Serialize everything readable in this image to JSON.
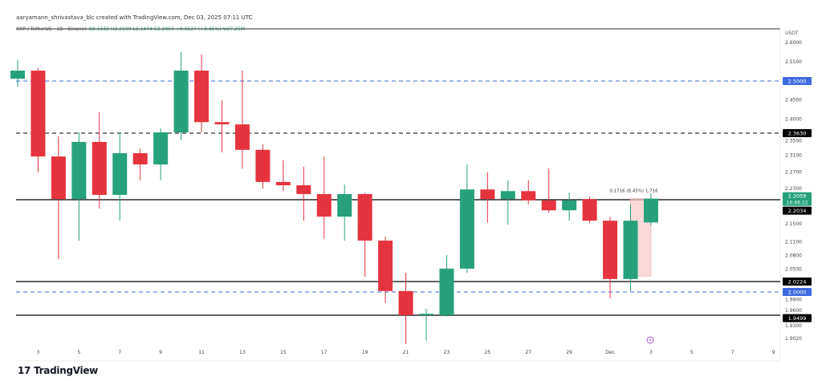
{
  "header": {
    "credit": "aaryamann_shrivastava_blc created with TradingView.com, Dec 03, 2025 07:11 UTC",
    "symbol": "XRP / TetherUS · 1D · Binance",
    "ohlc": "O2.1532 H2.2190 L2.1474 C2.2059 +0.0527 (+2.45%) Vol7.25M"
  },
  "axis": {
    "unit": "USDT"
  },
  "brand": {
    "name": "TradingView"
  },
  "colors": {
    "up": "#26a17b",
    "down": "#e5343f",
    "blue_line": "#3d6ae0",
    "measure": "#f7c9ca"
  },
  "chart_data": {
    "type": "candlestick",
    "y_ticks": [
      2.6,
      2.55,
      2.45,
      2.4,
      2.35,
      2.31,
      2.27,
      2.23,
      2.15,
      2.11,
      2.08,
      2.05,
      1.99,
      1.96,
      1.93,
      1.902
    ],
    "x_tick_labels": [
      "3",
      "5",
      "7",
      "9",
      "11",
      "13",
      "15",
      "17",
      "19",
      "21",
      "23",
      "25",
      "27",
      "29",
      "Dec",
      "3",
      "5",
      "7",
      "9"
    ],
    "x_tick_dates": [
      "2025-11-03",
      "2025-11-05",
      "2025-11-07",
      "2025-11-09",
      "2025-11-11",
      "2025-11-13",
      "2025-11-15",
      "2025-11-17",
      "2025-11-19",
      "2025-11-21",
      "2025-11-23",
      "2025-11-25",
      "2025-11-27",
      "2025-11-29",
      "2025-12-01",
      "2025-12-03",
      "2025-12-05",
      "2025-12-07",
      "2025-12-09"
    ],
    "candles": [
      {
        "d": "2025-11-02",
        "o": 2.506,
        "h": 2.554,
        "l": 2.485,
        "c": 2.527
      },
      {
        "d": "2025-11-03",
        "o": 2.527,
        "h": 2.533,
        "l": 2.269,
        "c": 2.307
      },
      {
        "d": "2025-11-04",
        "o": 2.307,
        "h": 2.355,
        "l": 2.072,
        "c": 2.205
      },
      {
        "d": "2025-11-05",
        "o": 2.205,
        "h": 2.365,
        "l": 2.113,
        "c": 2.342
      },
      {
        "d": "2025-11-06",
        "o": 2.342,
        "h": 2.418,
        "l": 2.184,
        "c": 2.215
      },
      {
        "d": "2025-11-07",
        "o": 2.215,
        "h": 2.365,
        "l": 2.157,
        "c": 2.315
      },
      {
        "d": "2025-11-08",
        "o": 2.315,
        "h": 2.326,
        "l": 2.25,
        "c": 2.288
      },
      {
        "d": "2025-11-09",
        "o": 2.288,
        "h": 2.376,
        "l": 2.25,
        "c": 2.365
      },
      {
        "d": "2025-11-10",
        "o": 2.365,
        "h": 2.575,
        "l": 2.346,
        "c": 2.527
      },
      {
        "d": "2025-11-11",
        "o": 2.527,
        "h": 2.569,
        "l": 2.365,
        "c": 2.392
      },
      {
        "d": "2025-11-12",
        "o": 2.392,
        "h": 2.449,
        "l": 2.317,
        "c": 2.386
      },
      {
        "d": "2025-11-13",
        "o": 2.386,
        "h": 2.527,
        "l": 2.278,
        "c": 2.323
      },
      {
        "d": "2025-11-14",
        "o": 2.323,
        "h": 2.336,
        "l": 2.23,
        "c": 2.246
      },
      {
        "d": "2025-11-15",
        "o": 2.246,
        "h": 2.298,
        "l": 2.224,
        "c": 2.238
      },
      {
        "d": "2025-11-16",
        "o": 2.238,
        "h": 2.282,
        "l": 2.157,
        "c": 2.217
      },
      {
        "d": "2025-11-17",
        "o": 2.217,
        "h": 2.307,
        "l": 2.116,
        "c": 2.166
      },
      {
        "d": "2025-11-18",
        "o": 2.166,
        "h": 2.24,
        "l": 2.113,
        "c": 2.217
      },
      {
        "d": "2025-11-19",
        "o": 2.217,
        "h": 2.22,
        "l": 2.033,
        "c": 2.113
      },
      {
        "d": "2025-11-20",
        "o": 2.113,
        "h": 2.122,
        "l": 1.976,
        "c": 2.002
      },
      {
        "d": "2025-11-21",
        "o": 2.002,
        "h": 2.042,
        "l": 1.889,
        "c": 1.95
      },
      {
        "d": "2025-11-22",
        "o": 1.95,
        "h": 1.964,
        "l": 1.897,
        "c": 1.953
      },
      {
        "d": "2025-11-23",
        "o": 1.95,
        "h": 2.081,
        "l": 1.947,
        "c": 2.051
      },
      {
        "d": "2025-11-24",
        "o": 2.051,
        "h": 2.288,
        "l": 2.042,
        "c": 2.228
      },
      {
        "d": "2025-11-25",
        "o": 2.228,
        "h": 2.269,
        "l": 2.152,
        "c": 2.205
      },
      {
        "d": "2025-11-26",
        "o": 2.205,
        "h": 2.25,
        "l": 2.148,
        "c": 2.224
      },
      {
        "d": "2025-11-27",
        "o": 2.224,
        "h": 2.25,
        "l": 2.193,
        "c": 2.202
      },
      {
        "d": "2025-11-28",
        "o": 2.202,
        "h": 2.278,
        "l": 2.175,
        "c": 2.18
      },
      {
        "d": "2025-11-29",
        "o": 2.18,
        "h": 2.22,
        "l": 2.157,
        "c": 2.202
      },
      {
        "d": "2025-11-30",
        "o": 2.205,
        "h": 2.211,
        "l": 2.152,
        "c": 2.157
      },
      {
        "d": "2025-12-01",
        "o": 2.157,
        "h": 2.166,
        "l": 1.986,
        "c": 2.028
      },
      {
        "d": "2025-12-02",
        "o": 2.028,
        "h": 2.193,
        "l": 2.002,
        "c": 2.157
      },
      {
        "d": "2025-12-03",
        "o": 2.1532,
        "h": 2.219,
        "l": 2.1474,
        "c": 2.2059
      }
    ],
    "horizontal_lines": [
      {
        "price": 2.5,
        "label": "2.5000",
        "style": "dashed",
        "color": "#3d6ae0"
      },
      {
        "price": 2.363,
        "label": "2.3630",
        "style": "dashed",
        "color": "#000000"
      },
      {
        "price": 2.2034,
        "label": "2.2034",
        "style": "solid",
        "color": "#000000"
      },
      {
        "price": 2.0224,
        "label": "2.0224",
        "style": "solid",
        "color": "#000000"
      },
      {
        "price": 2.0,
        "label": "2.0000",
        "style": "dashed",
        "color": "#3d6ae0"
      },
      {
        "price": 1.9499,
        "label": "1.9499",
        "style": "solid",
        "color": "#000000"
      }
    ],
    "last_price": {
      "price": 2.2059,
      "label": "2.2059",
      "countdown": "16:48:22"
    },
    "measure": {
      "from_date": "2025-12-02",
      "to_date": "2025-12-03",
      "from_price": 2.0343,
      "to_price": 2.2059,
      "label": "0.1716 (8.45%) 1,716"
    }
  }
}
